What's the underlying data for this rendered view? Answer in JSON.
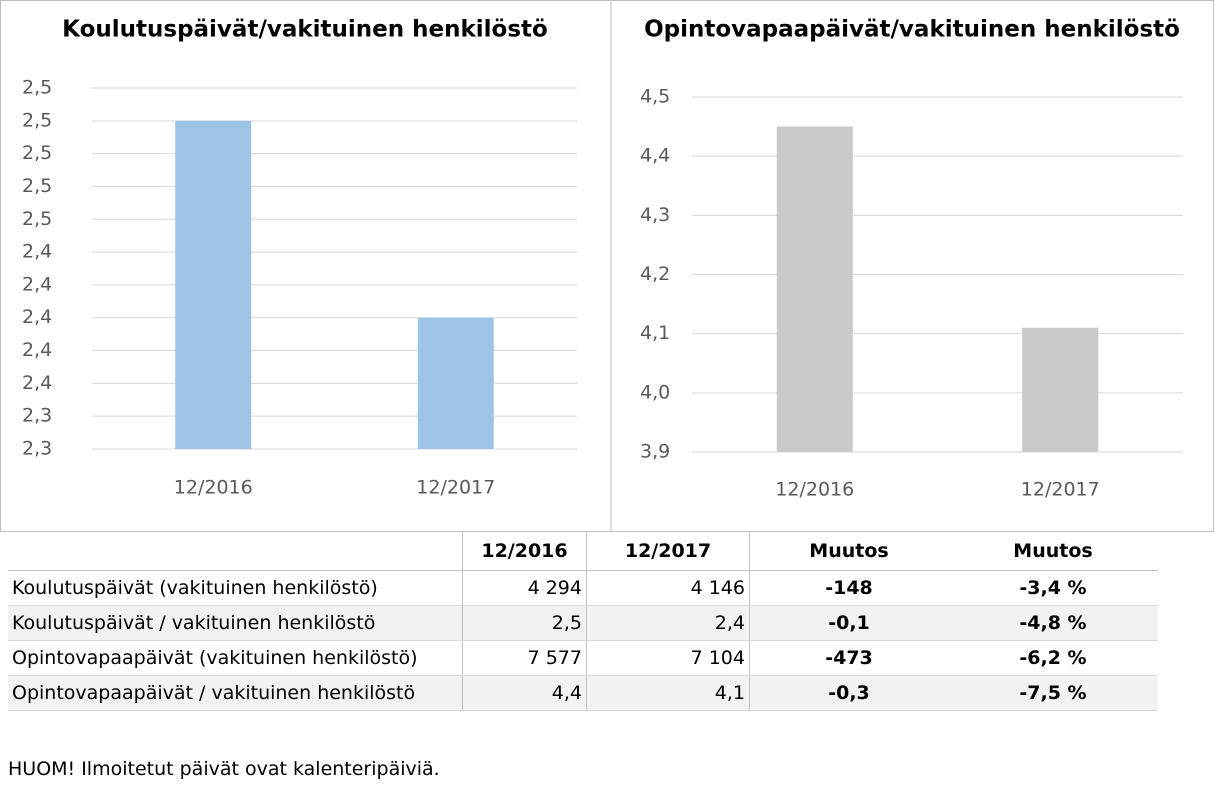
{
  "chart_data": [
    {
      "type": "bar",
      "title": "Koulutuspäivät/vakituinen henkilöstö",
      "categories": [
        "12/2016",
        "12/2017"
      ],
      "values": [
        2.52,
        2.4
      ],
      "color": "#9dc3e6",
      "ylim": [
        2.32,
        2.54
      ],
      "grid": true,
      "yticks": [
        {
          "value": 2.32,
          "label": "2,3"
        },
        {
          "value": 2.34,
          "label": "2,3"
        },
        {
          "value": 2.36,
          "label": "2,4"
        },
        {
          "value": 2.38,
          "label": "2,4"
        },
        {
          "value": 2.4,
          "label": "2,4"
        },
        {
          "value": 2.42,
          "label": "2,4"
        },
        {
          "value": 2.44,
          "label": "2,4"
        },
        {
          "value": 2.46,
          "label": "2,5"
        },
        {
          "value": 2.48,
          "label": "2,5"
        },
        {
          "value": 2.5,
          "label": "2,5"
        },
        {
          "value": 2.52,
          "label": "2,5"
        },
        {
          "value": 2.54,
          "label": "2,5"
        }
      ]
    },
    {
      "type": "bar",
      "title": "Opintovapaapäivät/vakituinen henkilöstö",
      "categories": [
        "12/2016",
        "12/2017"
      ],
      "values": [
        4.45,
        4.11
      ],
      "color": "#c9c9c9",
      "ylim": [
        3.9,
        4.5
      ],
      "grid": true,
      "yticks": [
        {
          "value": 3.9,
          "label": "3,9"
        },
        {
          "value": 4.0,
          "label": "4,0"
        },
        {
          "value": 4.1,
          "label": "4,1"
        },
        {
          "value": 4.2,
          "label": "4,2"
        },
        {
          "value": 4.3,
          "label": "4,3"
        },
        {
          "value": 4.4,
          "label": "4,4"
        },
        {
          "value": 4.5,
          "label": "4,5"
        }
      ]
    }
  ],
  "table": {
    "header": [
      "12/2016",
      "12/2017",
      "Muutos",
      "Muutos"
    ],
    "rows": [
      [
        "Koulutuspäivät (vakituinen henkilöstö)",
        "4 294",
        "4 146",
        "-148",
        "-3,4 %"
      ],
      [
        "Koulutuspäivät / vakituinen henkilöstö",
        "2,5",
        "2,4",
        "-0,1",
        "-4,8 %"
      ],
      [
        "Opintovapaapäivät (vakituinen henkilöstö)",
        "7 577",
        "7 104",
        "-473",
        "-6,2 %"
      ],
      [
        "Opintovapaapäivät / vakituinen henkilöstö",
        "4,4",
        "4,1",
        "-0,3",
        "-7,5 %"
      ]
    ]
  },
  "note": "HUOM! Ilmoitetut päivät ovat kalenteripäiviä."
}
